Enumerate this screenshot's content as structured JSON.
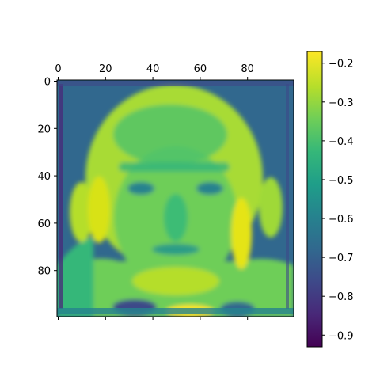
{
  "chart_data": {
    "type": "heatmap",
    "title": "",
    "xlabel": "",
    "ylabel": "",
    "x_ticks_top": [
      "0",
      "20",
      "40",
      "60",
      "80"
    ],
    "x_tick_values": [
      0,
      20,
      40,
      60,
      80
    ],
    "y_ticks": [
      "0",
      "20",
      "40",
      "60",
      "80"
    ],
    "y_tick_values": [
      0,
      20,
      40,
      60,
      80
    ],
    "xlim": [
      -0.5,
      99.5
    ],
    "ylim": [
      99.5,
      -0.5
    ],
    "grid_size": [
      100,
      100
    ],
    "colormap": "viridis",
    "colorbar": {
      "min": -0.93,
      "max": -0.17,
      "ticks": [
        "−0.2",
        "−0.3",
        "−0.4",
        "−0.5",
        "−0.6",
        "−0.7",
        "−0.8",
        "−0.9"
      ],
      "tick_values": [
        -0.2,
        -0.3,
        -0.4,
        -0.5,
        -0.6,
        -0.7,
        -0.8,
        -0.9
      ]
    },
    "image_content": "grayscale face intensity map",
    "value_summary": {
      "background": -0.68,
      "face_mean": -0.42,
      "highlights": -0.22,
      "shadows": -0.88
    }
  },
  "colors": {
    "viridis_stops": [
      "#440154",
      "#482878",
      "#3e4989",
      "#31688e",
      "#26828e",
      "#1f9e89",
      "#35b779",
      "#6ece58",
      "#b5de2b",
      "#fde725"
    ]
  }
}
